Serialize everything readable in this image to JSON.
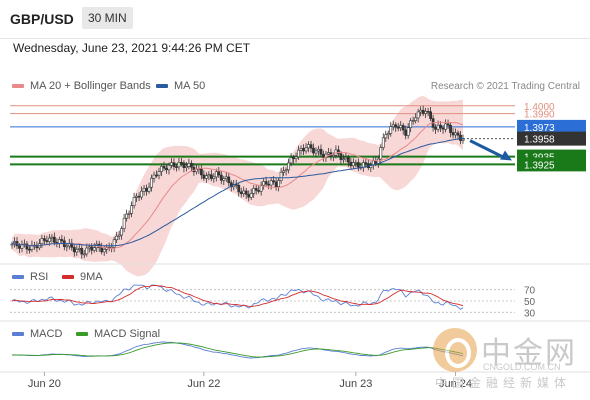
{
  "header": {
    "symbol": "GBP/USD",
    "timeframe": "30 MIN"
  },
  "datetime": "Wednesday, June 23, 2021 9:44:26 PM CET",
  "legend_main": [
    {
      "label": "MA 20 + Bollinger Bands",
      "color": "#e88a8a"
    },
    {
      "label": "MA 50",
      "color": "#2b5a9e"
    }
  ],
  "credit": "Research © 2021 Trading Central",
  "legend_rsi": [
    {
      "label": "RSI",
      "color": "#5b7fd6"
    },
    {
      "label": "9MA",
      "color": "#d62c2c"
    }
  ],
  "legend_macd": [
    {
      "label": "MACD",
      "color": "#5b7fd6"
    },
    {
      "label": "MACD Signal",
      "color": "#3a9a2a"
    }
  ],
  "colors": {
    "resistance": "#e0907e",
    "pivot": "#2b6fd6",
    "support": "#1a7a1a",
    "arrow": "#1e5aa0",
    "bollinger": "#f6c9c9",
    "candle_up": "#ffffff",
    "candle_down": "#333333"
  },
  "watermark": {
    "big": "中金网",
    "url": "CNGOLD.COM.CN",
    "small": "中国金融经新媒体"
  },
  "chart_data": {
    "type": "candlestick",
    "ylim": [
      1.38,
      1.401
    ],
    "x_labels": [
      "Jun 20",
      "Jun 22",
      "Jun 23",
      "Jun 24"
    ],
    "levels": [
      {
        "value": 1.4,
        "label": "1.4000",
        "kind": "resistance"
      },
      {
        "value": 1.399,
        "label": "1.3990",
        "kind": "resistance"
      },
      {
        "value": 1.3973,
        "label": "1.3973",
        "kind": "pivot"
      },
      {
        "value": 1.3958,
        "label": "1.3958",
        "kind": "current"
      },
      {
        "value": 1.3935,
        "label": "1.3935",
        "kind": "support"
      },
      {
        "value": 1.3925,
        "label": "1.3925",
        "kind": "support"
      }
    ],
    "forecast": {
      "from": 1.3958,
      "to": 1.393
    },
    "rsi": {
      "levels": [
        70,
        50,
        30
      ],
      "ylim": [
        20,
        80
      ]
    }
  }
}
